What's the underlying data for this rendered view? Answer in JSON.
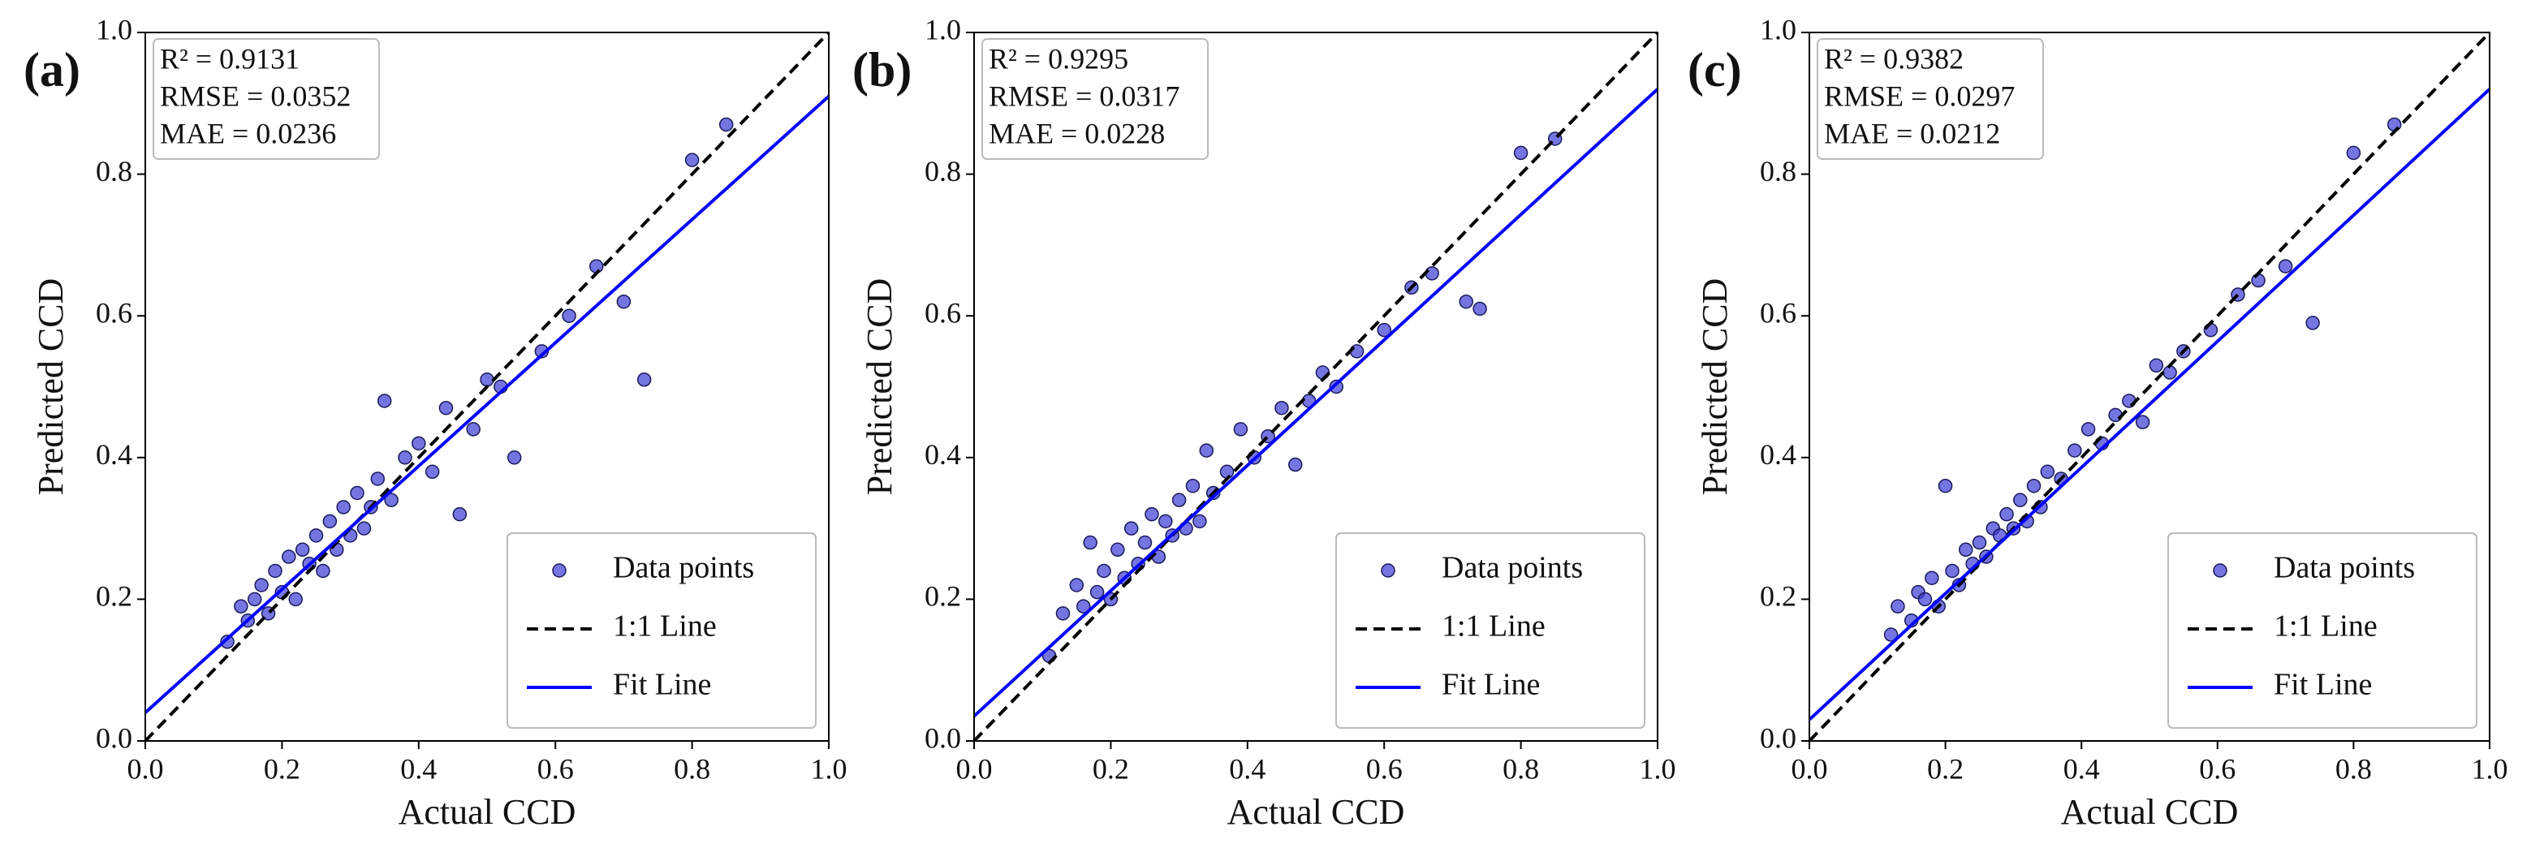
{
  "chart_data": [
    {
      "type": "scatter",
      "panel_label": "(a)",
      "xlabel": "Actual CCD",
      "ylabel": "Predicted CCD",
      "annotation": [
        "R² = 0.9131",
        "RMSE = 0.0352",
        "MAE = 0.0236"
      ],
      "xlim": [
        0,
        1
      ],
      "ylim": [
        0,
        1
      ],
      "xticks": [
        {
          "value": 0,
          "label": "0.0"
        },
        0.2,
        0.4,
        0.6,
        0.8,
        {
          "value": 1,
          "label": "1.0"
        }
      ],
      "yticks": [
        {
          "value": 0,
          "label": "0.0"
        },
        0.2,
        0.4,
        0.6,
        0.8,
        {
          "value": 1,
          "label": "1.0"
        }
      ],
      "legend": "lower right",
      "series": [
        {
          "name": "Data points",
          "color": "#3a3ad6",
          "marker": "circle",
          "x": [
            0.12,
            0.14,
            0.15,
            0.16,
            0.17,
            0.18,
            0.19,
            0.2,
            0.21,
            0.22,
            0.23,
            0.24,
            0.25,
            0.26,
            0.27,
            0.28,
            0.29,
            0.3,
            0.31,
            0.32,
            0.33,
            0.34,
            0.35,
            0.36,
            0.38,
            0.4,
            0.42,
            0.44,
            0.46,
            0.48,
            0.5,
            0.52,
            0.54,
            0.58,
            0.62,
            0.66,
            0.7,
            0.73,
            0.8,
            0.85
          ],
          "values": [
            0.14,
            0.19,
            0.17,
            0.2,
            0.22,
            0.18,
            0.24,
            0.21,
            0.26,
            0.2,
            0.27,
            0.25,
            0.29,
            0.24,
            0.31,
            0.27,
            0.33,
            0.29,
            0.35,
            0.3,
            0.33,
            0.37,
            0.48,
            0.34,
            0.4,
            0.42,
            0.38,
            0.47,
            0.32,
            0.44,
            0.51,
            0.5,
            0.4,
            0.55,
            0.6,
            0.67,
            0.62,
            0.51,
            0.82,
            0.87
          ]
        },
        {
          "name": "1:1 Line",
          "color": "#000000",
          "style": "dashed",
          "x": [
            0,
            1
          ],
          "values": [
            0,
            1
          ]
        },
        {
          "name": "Fit Line",
          "color": "#0000ff",
          "style": "solid",
          "x": [
            0,
            1
          ],
          "values": [
            0.04,
            0.91
          ]
        }
      ]
    },
    {
      "type": "scatter",
      "panel_label": "(b)",
      "xlabel": "Actual CCD",
      "ylabel": "Predicted CCD",
      "annotation": [
        "R² = 0.9295",
        "RMSE = 0.0317",
        "MAE = 0.0228"
      ],
      "xlim": [
        0,
        1
      ],
      "ylim": [
        0,
        1
      ],
      "xticks": [
        {
          "value": 0,
          "label": "0.0"
        },
        0.2,
        0.4,
        0.6,
        0.8,
        {
          "value": 1,
          "label": "1.0"
        }
      ],
      "yticks": [
        {
          "value": 0,
          "label": "0.0"
        },
        0.2,
        0.4,
        0.6,
        0.8,
        {
          "value": 1,
          "label": "1.0"
        }
      ],
      "legend": "lower right",
      "series": [
        {
          "name": "Data points",
          "color": "#3a3ad6",
          "marker": "circle",
          "x": [
            0.11,
            0.13,
            0.15,
            0.16,
            0.17,
            0.18,
            0.19,
            0.2,
            0.21,
            0.22,
            0.23,
            0.24,
            0.25,
            0.26,
            0.27,
            0.28,
            0.29,
            0.3,
            0.31,
            0.32,
            0.33,
            0.34,
            0.35,
            0.37,
            0.39,
            0.41,
            0.43,
            0.45,
            0.47,
            0.49,
            0.51,
            0.53,
            0.56,
            0.6,
            0.64,
            0.67,
            0.72,
            0.74,
            0.8,
            0.85
          ],
          "values": [
            0.12,
            0.18,
            0.22,
            0.19,
            0.28,
            0.21,
            0.24,
            0.2,
            0.27,
            0.23,
            0.3,
            0.25,
            0.28,
            0.32,
            0.26,
            0.31,
            0.29,
            0.34,
            0.3,
            0.36,
            0.31,
            0.41,
            0.35,
            0.38,
            0.44,
            0.4,
            0.43,
            0.47,
            0.39,
            0.48,
            0.52,
            0.5,
            0.55,
            0.58,
            0.64,
            0.66,
            0.62,
            0.61,
            0.83,
            0.85
          ]
        },
        {
          "name": "1:1 Line",
          "color": "#000000",
          "style": "dashed",
          "x": [
            0,
            1
          ],
          "values": [
            0,
            1
          ]
        },
        {
          "name": "Fit Line",
          "color": "#0000ff",
          "style": "solid",
          "x": [
            0,
            1
          ],
          "values": [
            0.035,
            0.92
          ]
        }
      ]
    },
    {
      "type": "scatter",
      "panel_label": "(c)",
      "xlabel": "Actual CCD",
      "ylabel": "Predicted CCD",
      "annotation": [
        "R² = 0.9382",
        "RMSE = 0.0297",
        "MAE = 0.0212"
      ],
      "xlim": [
        0,
        1
      ],
      "ylim": [
        0,
        1
      ],
      "xticks": [
        {
          "value": 0,
          "label": "0.0"
        },
        0.2,
        0.4,
        0.6,
        0.8,
        {
          "value": 1,
          "label": "1.0"
        }
      ],
      "yticks": [
        {
          "value": 0,
          "label": "0.0"
        },
        0.2,
        0.4,
        0.6,
        0.8,
        {
          "value": 1,
          "label": "1.0"
        }
      ],
      "legend": "lower right",
      "series": [
        {
          "name": "Data points",
          "color": "#3a3ad6",
          "marker": "circle",
          "x": [
            0.12,
            0.13,
            0.15,
            0.16,
            0.17,
            0.18,
            0.19,
            0.2,
            0.21,
            0.22,
            0.23,
            0.24,
            0.25,
            0.26,
            0.27,
            0.28,
            0.29,
            0.3,
            0.31,
            0.32,
            0.33,
            0.34,
            0.35,
            0.37,
            0.39,
            0.41,
            0.43,
            0.45,
            0.47,
            0.49,
            0.51,
            0.53,
            0.55,
            0.59,
            0.63,
            0.66,
            0.7,
            0.74,
            0.8,
            0.86
          ],
          "values": [
            0.15,
            0.19,
            0.17,
            0.21,
            0.2,
            0.23,
            0.19,
            0.36,
            0.24,
            0.22,
            0.27,
            0.25,
            0.28,
            0.26,
            0.3,
            0.29,
            0.32,
            0.3,
            0.34,
            0.31,
            0.36,
            0.33,
            0.38,
            0.37,
            0.41,
            0.44,
            0.42,
            0.46,
            0.48,
            0.45,
            0.53,
            0.52,
            0.55,
            0.58,
            0.63,
            0.65,
            0.67,
            0.59,
            0.83,
            0.87
          ]
        },
        {
          "name": "1:1 Line",
          "color": "#000000",
          "style": "dashed",
          "x": [
            0,
            1
          ],
          "values": [
            0,
            1
          ]
        },
        {
          "name": "Fit Line",
          "color": "#0000ff",
          "style": "solid",
          "x": [
            0,
            1
          ],
          "values": [
            0.03,
            0.92
          ]
        }
      ]
    }
  ]
}
